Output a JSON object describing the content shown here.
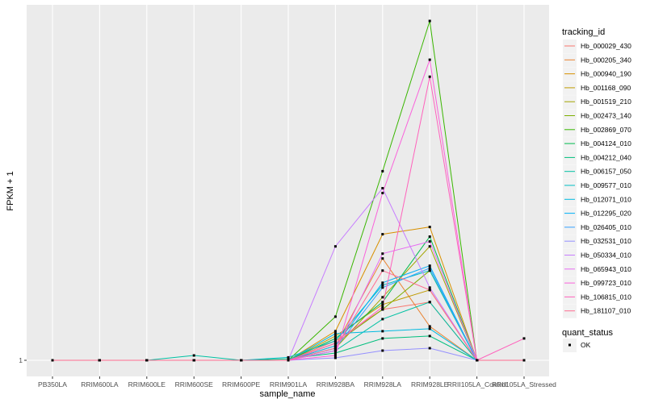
{
  "chart_data": {
    "type": "line",
    "xlabel": "sample_name",
    "ylabel": "FPKM + 1",
    "y_tick_labels": [
      "1"
    ],
    "y_tick_values": [
      1
    ],
    "ylim": [
      1,
      8.0
    ],
    "grid": true,
    "legend_placement": "right",
    "categories": [
      "PB350LA",
      "RRIM600LA",
      "RRIM600LE",
      "RRIM600SE",
      "RRIM600PE",
      "RRIM901LA",
      "RRIM928BA",
      "RRIM928LA",
      "RRIM928LE",
      "RRII105LA_Control",
      "RRII105LA_Stressed"
    ],
    "legend": {
      "title": "tracking_id",
      "items": [
        "Hb_000029_430",
        "Hb_000205_340",
        "Hb_000940_190",
        "Hb_001168_090",
        "Hb_001519_210",
        "Hb_002473_140",
        "Hb_002869_070",
        "Hb_004124_010",
        "Hb_004212_040",
        "Hb_006157_050",
        "Hb_009577_010",
        "Hb_012071_010",
        "Hb_012295_020",
        "Hb_026405_010",
        "Hb_032531_010",
        "Hb_050334_010",
        "Hb_065943_010",
        "Hb_099723_010",
        "Hb_106815_010",
        "Hb_181107_010"
      ]
    },
    "shape_legend": {
      "title": "quant_status",
      "items": [
        "OK"
      ]
    },
    "series": [
      {
        "name": "Hb_000029_430",
        "color": "#F8766D",
        "values": [
          1,
          1,
          1,
          1,
          1,
          1,
          1.4,
          2.05,
          2.2,
          1,
          1
        ]
      },
      {
        "name": "Hb_000205_340",
        "color": "#EA8331",
        "values": [
          1,
          1,
          1,
          1,
          1,
          1,
          1.3,
          3.1,
          1.7,
          1,
          1
        ]
      },
      {
        "name": "Hb_000940_190",
        "color": "#D89000",
        "values": [
          1,
          1,
          1,
          1,
          1,
          1,
          1.6,
          3.6,
          3.75,
          1,
          1
        ]
      },
      {
        "name": "Hb_001168_090",
        "color": "#C09B00",
        "values": [
          1,
          1,
          1,
          1,
          1,
          1,
          1.5,
          2.15,
          2.45,
          1,
          1
        ]
      },
      {
        "name": "Hb_001519_210",
        "color": "#A3A500",
        "values": [
          1,
          1,
          1,
          1,
          1,
          1,
          1.25,
          2.3,
          3.35,
          1,
          1
        ]
      },
      {
        "name": "Hb_002473_140",
        "color": "#7CAE00",
        "values": [
          1,
          1,
          1,
          1,
          1,
          1,
          1.35,
          2.05,
          2.85,
          1,
          1
        ]
      },
      {
        "name": "Hb_002869_070",
        "color": "#39B600",
        "values": [
          1,
          1,
          1,
          1,
          1,
          1,
          1.9,
          4.9,
          8.0,
          1,
          1
        ]
      },
      {
        "name": "Hb_004124_010",
        "color": "#00BB4E",
        "values": [
          1,
          1,
          1,
          1,
          1,
          1,
          1.45,
          2.2,
          3.55,
          1,
          1
        ]
      },
      {
        "name": "Hb_004212_040",
        "color": "#00BF7D",
        "values": [
          1,
          1,
          1,
          1,
          1,
          1.03,
          1.15,
          1.45,
          1.5,
          1,
          1
        ]
      },
      {
        "name": "Hb_006157_050",
        "color": "#00C1A3",
        "values": [
          1,
          1,
          1,
          1.1,
          1,
          1,
          1.2,
          1.85,
          2.2,
          1,
          1
        ]
      },
      {
        "name": "Hb_009577_010",
        "color": "#00BFC4",
        "values": [
          1,
          1,
          1,
          1,
          1,
          1.06,
          1.4,
          2.55,
          2.85,
          1,
          1
        ]
      },
      {
        "name": "Hb_012071_010",
        "color": "#00BAE0",
        "values": [
          1,
          1,
          1,
          1,
          1,
          1,
          1.55,
          1.6,
          1.65,
          1,
          1
        ]
      },
      {
        "name": "Hb_012295_020",
        "color": "#00B0F6",
        "values": [
          1,
          1,
          1,
          1,
          1,
          1,
          1.3,
          2.6,
          2.95,
          1,
          1
        ]
      },
      {
        "name": "Hb_026405_010",
        "color": "#35A2FF",
        "values": [
          1,
          1,
          1,
          1,
          1,
          1,
          1.25,
          2.5,
          2.9,
          1,
          1
        ]
      },
      {
        "name": "Hb_032531_010",
        "color": "#9590FF",
        "values": [
          1,
          1,
          1,
          1,
          1,
          1,
          1.05,
          1.2,
          1.25,
          1,
          1
        ]
      },
      {
        "name": "Hb_050334_010",
        "color": "#C77CFF",
        "values": [
          1,
          1,
          1,
          1,
          1,
          1,
          3.35,
          4.55,
          2.5,
          1,
          1
        ]
      },
      {
        "name": "Hb_065943_010",
        "color": "#E76BF3",
        "values": [
          1,
          1,
          1,
          1,
          1,
          1,
          1.2,
          3.2,
          3.45,
          1,
          1
        ]
      },
      {
        "name": "Hb_099723_010",
        "color": "#FA62DB",
        "values": [
          1,
          1,
          1,
          1,
          1,
          1,
          1.1,
          4.45,
          7.2,
          1,
          1
        ]
      },
      {
        "name": "Hb_106815_010",
        "color": "#FF62BC",
        "values": [
          1,
          1,
          1,
          1,
          1,
          1,
          1.35,
          2.1,
          6.85,
          1,
          1.45
        ]
      },
      {
        "name": "Hb_181107_010",
        "color": "#FF6C91",
        "values": [
          1,
          1,
          1,
          1,
          1,
          1,
          1.25,
          2.85,
          2.45,
          1,
          1
        ]
      }
    ]
  }
}
